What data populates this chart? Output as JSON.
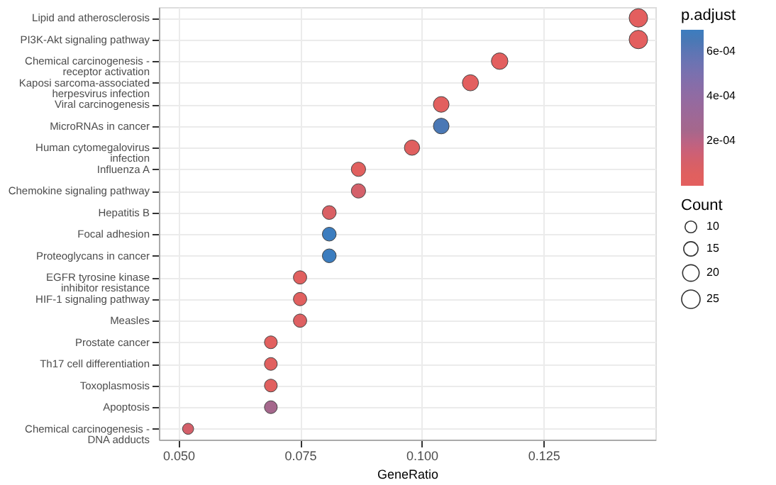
{
  "chart_data": {
    "type": "bubble",
    "orientation": "horizontal",
    "xlabel": "GeneRatio",
    "legend_title": "Count",
    "clabel": "p.adjust",
    "categories": [
      "Lipid and atherosclerosis",
      "PI3K-Akt signaling pathway",
      "Chemical carcinogenesis - receptor activation",
      "Kaposi sarcoma-associated herpesvirus infection",
      "Viral carcinogenesis",
      "MicroRNAs in cancer",
      "Human cytomegalovirus infection",
      "Influenza A",
      "Chemokine signaling pathway",
      "Hepatitis B",
      "Focal adhesion",
      "Proteoglycans in cancer",
      "EGFR tyrosine kinase inhibitor resistance",
      "HIF-1 signaling pathway",
      "Measles",
      "Prostate cancer",
      "Th17 cell differentiation",
      "Toxoplasmosis",
      "Apoptosis",
      "Chemical carcinogenesis - DNA adducts"
    ],
    "values": [
      0.1445,
      0.1445,
      0.116,
      0.11,
      0.104,
      0.104,
      0.098,
      0.087,
      0.087,
      0.081,
      0.081,
      0.081,
      0.075,
      0.075,
      0.075,
      0.069,
      0.069,
      0.069,
      0.069,
      0.052
    ],
    "sizes": [
      25,
      25,
      20,
      19,
      18,
      18,
      17,
      15,
      15,
      14,
      14,
      14,
      13,
      13,
      13,
      12,
      12,
      12,
      12,
      9
    ],
    "size_legend": [
      10,
      15,
      20,
      25
    ],
    "cvalues": [
      2e-05,
      2e-05,
      2e-05,
      2e-05,
      3e-05,
      0.00065,
      5e-05,
      4e-05,
      0.00012,
      8e-05,
      0.00068,
      0.00068,
      4e-05,
      4e-05,
      6e-05,
      3e-05,
      4e-05,
      4e-05,
      0.00025,
      0.00012
    ],
    "colors": [
      "#e35f5f",
      "#e35f5f",
      "#e35f5f",
      "#e35f5f",
      "#e2605f",
      "#4a78b5",
      "#e0605f",
      "#e1605f",
      "#d4606a",
      "#da6064",
      "#3c7dbf",
      "#3c7dbf",
      "#e1605f",
      "#e1605f",
      "#de6062",
      "#e35f5f",
      "#e1605f",
      "#e1605f",
      "#a5678c",
      "#d4606a"
    ],
    "clim": [
      1e-06,
      0.0007
    ],
    "cticks": [
      {
        "value": 0.0002,
        "label": "2e-04"
      },
      {
        "value": 0.0004,
        "label": "4e-04"
      },
      {
        "value": 0.0006,
        "label": "6e-04"
      }
    ],
    "xlim": [
      0.046,
      0.148
    ],
    "xticks": [
      {
        "value": 0.05,
        "label": "0.050"
      },
      {
        "value": 0.075,
        "label": "0.075"
      },
      {
        "value": 0.1,
        "label": "0.100"
      },
      {
        "value": 0.125,
        "label": "0.125"
      }
    ],
    "grid": true
  }
}
